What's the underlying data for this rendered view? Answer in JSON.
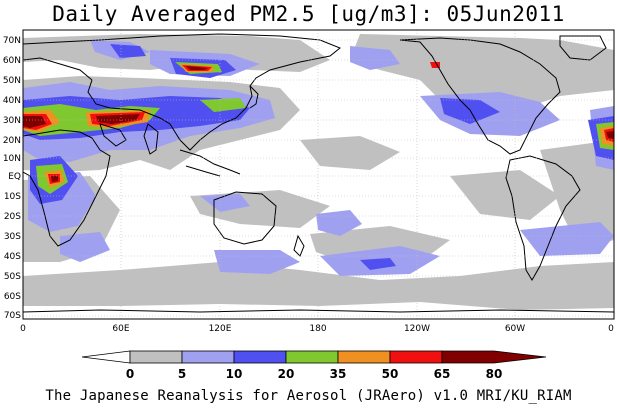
{
  "title": "Daily Averaged PM2.5 [ug/m3]: 05Jun2011",
  "credit": "The Japanese Reanalysis for Aerosol (JRAero) v1.0 MRI/KU_RIAM",
  "map": {
    "lat_labels": [
      "70N",
      "60N",
      "50N",
      "40N",
      "30N",
      "20N",
      "10N",
      "EQ",
      "10S",
      "20S",
      "30S",
      "40S",
      "50S",
      "60S",
      "70S"
    ],
    "lon_labels": [
      "0",
      "60E",
      "120E",
      "180",
      "120W",
      "60W",
      "0"
    ],
    "colors": {
      "ocean_bg": "#ffffff",
      "coast": "#000000",
      "grid": "#bdbdbd"
    }
  },
  "colorbar": {
    "labels": [
      "0",
      "5",
      "10",
      "20",
      "35",
      "50",
      "65",
      "80"
    ],
    "colors": [
      "#ffffff",
      "#c0c0c0",
      "#a0a0f0",
      "#5050f0",
      "#80c830",
      "#f09020",
      "#f01010",
      "#800000"
    ]
  }
}
